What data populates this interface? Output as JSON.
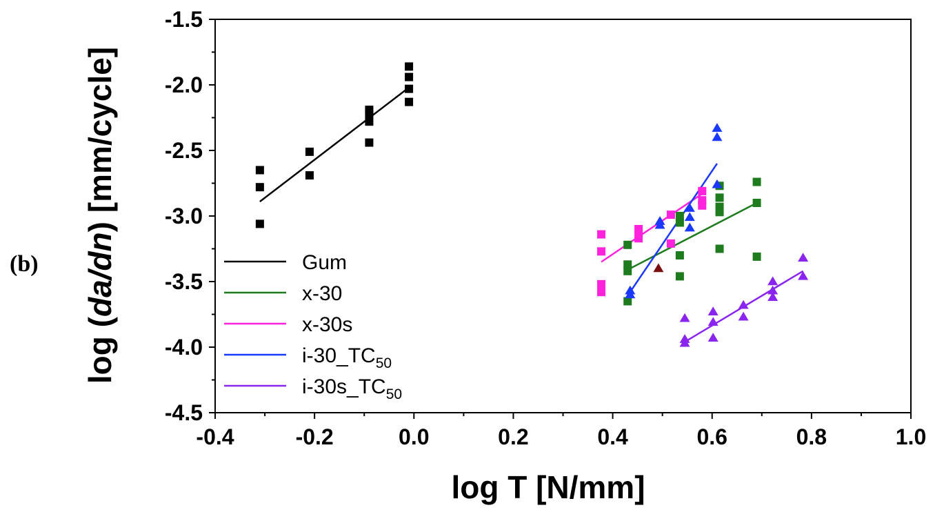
{
  "panel_label": "(b)",
  "chart_data": {
    "type": "scatter",
    "title": "",
    "xlabel": "log T [N/mm]",
    "ylabel": {
      "prefix": "log (",
      "italic": "da/dn",
      "suffix": ") [mm/cycle]"
    },
    "xlim": [
      -0.4,
      1.0
    ],
    "ylim": [
      -4.5,
      -1.5
    ],
    "xticks": [
      -0.4,
      -0.2,
      0.0,
      0.2,
      0.4,
      0.6,
      0.8,
      1.0
    ],
    "xtick_labels": [
      "-0.4",
      "-0.2",
      "0.0",
      "0.2",
      "0.4",
      "0.6",
      "0.8",
      "1.0"
    ],
    "yticks": [
      -1.5,
      -2.0,
      -2.5,
      -3.0,
      -3.5,
      -4.0,
      -4.5
    ],
    "ytick_labels": [
      "-1.5",
      "-2.0",
      "-2.5",
      "-3.0",
      "-3.5",
      "-4.0",
      "-4.5"
    ],
    "grid": false,
    "legend_position": "bottom-left",
    "series": [
      {
        "name": "Gum",
        "name_sub": "",
        "color": "#000000",
        "marker": "square",
        "points": [
          [
            -0.31,
            -2.65
          ],
          [
            -0.31,
            -2.78
          ],
          [
            -0.31,
            -3.06
          ],
          [
            -0.21,
            -2.51
          ],
          [
            -0.21,
            -2.69
          ],
          [
            -0.09,
            -2.19
          ],
          [
            -0.09,
            -2.22
          ],
          [
            -0.09,
            -2.28
          ],
          [
            -0.09,
            -2.44
          ],
          [
            -0.01,
            -1.86
          ],
          [
            -0.01,
            -1.94
          ],
          [
            -0.01,
            -2.03
          ],
          [
            -0.01,
            -2.13
          ]
        ],
        "fit": [
          [
            -0.31,
            -2.89
          ],
          [
            -0.01,
            -2.02
          ]
        ]
      },
      {
        "name": "x-30",
        "name_sub": "",
        "color": "#1e7b1e",
        "marker": "square",
        "points": [
          [
            0.43,
            -3.22
          ],
          [
            0.43,
            -3.37
          ],
          [
            0.43,
            -3.42
          ],
          [
            0.43,
            -3.65
          ],
          [
            0.535,
            -3.0
          ],
          [
            0.535,
            -3.05
          ],
          [
            0.535,
            -3.3
          ],
          [
            0.535,
            -3.46
          ],
          [
            0.615,
            -2.77
          ],
          [
            0.615,
            -2.86
          ],
          [
            0.615,
            -2.93
          ],
          [
            0.615,
            -2.97
          ],
          [
            0.615,
            -3.25
          ],
          [
            0.69,
            -2.74
          ],
          [
            0.69,
            -2.9
          ],
          [
            0.69,
            -3.31
          ]
        ],
        "fit": [
          [
            0.43,
            -3.41
          ],
          [
            0.69,
            -2.9
          ]
        ]
      },
      {
        "name": "x-30s",
        "name_sub": "",
        "color": "#ff22dd",
        "marker": "square",
        "points": [
          [
            0.377,
            -3.14
          ],
          [
            0.377,
            -3.27
          ],
          [
            0.377,
            -3.52
          ],
          [
            0.377,
            -3.55
          ],
          [
            0.377,
            -3.58
          ],
          [
            0.452,
            -3.1
          ],
          [
            0.452,
            -3.13
          ],
          [
            0.452,
            -3.17
          ],
          [
            0.517,
            -2.99
          ],
          [
            0.517,
            -3.21
          ],
          [
            0.58,
            -2.81
          ],
          [
            0.58,
            -2.88
          ],
          [
            0.58,
            -2.92
          ]
        ],
        "fit": [
          [
            0.377,
            -3.35
          ],
          [
            0.58,
            -2.83
          ]
        ]
      },
      {
        "name": "i-30_TC",
        "name_sub": "50",
        "color": "#1a38ff",
        "marker": "triangle",
        "points": [
          [
            0.435,
            -3.57
          ],
          [
            0.435,
            -3.6
          ],
          [
            0.495,
            -3.04
          ],
          [
            0.495,
            -3.07
          ],
          [
            0.555,
            -2.94
          ],
          [
            0.555,
            -3.01
          ],
          [
            0.555,
            -3.09
          ],
          [
            0.61,
            -2.33
          ],
          [
            0.61,
            -2.4
          ],
          [
            0.61,
            -2.76
          ]
        ],
        "fit": [
          [
            0.435,
            -3.58
          ],
          [
            0.61,
            -2.6
          ]
        ]
      },
      {
        "name": "i-30s_TC",
        "name_sub": "50",
        "color": "#8a24f0",
        "marker": "triangle",
        "points": [
          [
            0.545,
            -3.78
          ],
          [
            0.545,
            -3.94
          ],
          [
            0.545,
            -3.97
          ],
          [
            0.602,
            -3.73
          ],
          [
            0.602,
            -3.81
          ],
          [
            0.602,
            -3.93
          ],
          [
            0.663,
            -3.68
          ],
          [
            0.663,
            -3.77
          ],
          [
            0.722,
            -3.5
          ],
          [
            0.722,
            -3.57
          ],
          [
            0.722,
            -3.62
          ],
          [
            0.783,
            -3.32
          ],
          [
            0.783,
            -3.46
          ]
        ],
        "fit": [
          [
            0.545,
            -3.96
          ],
          [
            0.783,
            -3.42
          ]
        ]
      }
    ],
    "extra_points": [
      {
        "color": "#7a0f0f",
        "marker": "triangle",
        "x": 0.492,
        "y": -3.4
      }
    ]
  }
}
